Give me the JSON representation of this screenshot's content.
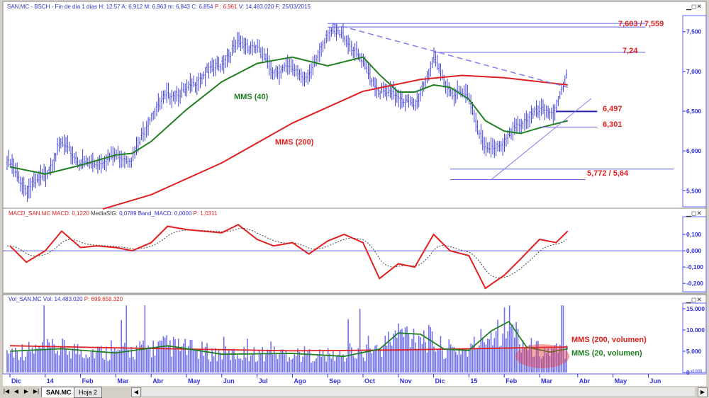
{
  "header": {
    "symbol": "SAN.MC - BSCH - Fin de día 1 días",
    "h": "H: 12:57",
    "a": "A: 6,912",
    "m": "M: 6,963",
    "min": "m: 6,843",
    "c": "C: 6,854",
    "p": "P : 6,961",
    "v": "V: 14.483.020",
    "f": "F: 25/03/2015"
  },
  "macd_header": {
    "name": "MACD_SAN.MC",
    "macd": "MACD: 0,1220",
    "sig_label": "MediaSIG:",
    "sig": "0,0789",
    "band": "Band_MACD: 0,0000",
    "p": "P: 1,0311"
  },
  "vol_header": {
    "name": "Vol_SAN.MC",
    "vol": "Vol: 14.483.020",
    "p": "P: 699.658.320"
  },
  "tabs": {
    "sheet1": "SAN.MC",
    "sheet2": "Hoja 2"
  },
  "colors": {
    "bars": "#4040e0",
    "ma_long": "#e02020",
    "ma_short": "#208020",
    "axis": "#3030e0",
    "annot": "#e02020"
  },
  "chart_data": [
    {
      "type": "ohlc",
      "title": "SAN.MC",
      "yticks": [
        "7,500",
        "7,000",
        "6,500",
        "6,000",
        "5,500"
      ],
      "ytick_values": [
        7.5,
        7.0,
        6.5,
        6.0,
        5.5
      ],
      "ylim": [
        5.28,
        7.72
      ],
      "price": [
        [
          "2013-12-01",
          5.85
        ],
        [
          "2013-12-15",
          5.5
        ],
        [
          "2014-01-01",
          5.7
        ],
        [
          "2014-01-15",
          6.1
        ],
        [
          "2014-02-01",
          5.85
        ],
        [
          "2014-02-15",
          5.85
        ],
        [
          "2014-03-01",
          5.95
        ],
        [
          "2014-03-15",
          5.9
        ],
        [
          "2014-04-01",
          6.45
        ],
        [
          "2014-04-15",
          6.7
        ],
        [
          "2014-05-01",
          6.75
        ],
        [
          "2014-05-15",
          6.95
        ],
        [
          "2014-06-01",
          7.1
        ],
        [
          "2014-06-15",
          7.35
        ],
        [
          "2014-07-01",
          7.3
        ],
        [
          "2014-07-15",
          7.0
        ],
        [
          "2014-08-01",
          7.05
        ],
        [
          "2014-08-15",
          6.9
        ],
        [
          "2014-09-01",
          7.5
        ],
        [
          "2014-09-15",
          7.45
        ],
        [
          "2014-10-01",
          7.1
        ],
        [
          "2014-10-15",
          6.75
        ],
        [
          "2014-11-01",
          6.7
        ],
        [
          "2014-11-15",
          6.55
        ],
        [
          "2014-12-01",
          7.15
        ],
        [
          "2014-12-15",
          6.75
        ],
        [
          "2015-01-01",
          6.7
        ],
        [
          "2015-01-15",
          6.0
        ],
        [
          "2015-02-01",
          6.1
        ],
        [
          "2015-02-15",
          6.35
        ],
        [
          "2015-03-01",
          6.5
        ],
        [
          "2015-03-15",
          6.5
        ],
        [
          "2015-03-25",
          6.96
        ]
      ],
      "series": [
        {
          "name": "MMS (40)",
          "color": "#208020",
          "points": [
            [
              "2013-12-01",
              5.8
            ],
            [
              "2014-01-01",
              5.71
            ],
            [
              "2014-02-01",
              5.82
            ],
            [
              "2014-03-01",
              5.95
            ],
            [
              "2014-03-15",
              5.97
            ],
            [
              "2014-04-01",
              6.12
            ],
            [
              "2014-05-01",
              6.52
            ],
            [
              "2014-06-01",
              6.87
            ],
            [
              "2014-07-01",
              7.1
            ],
            [
              "2014-08-01",
              7.18
            ],
            [
              "2014-09-01",
              7.07
            ],
            [
              "2014-10-01",
              7.18
            ],
            [
              "2014-10-15",
              6.96
            ],
            [
              "2014-11-01",
              6.74
            ],
            [
              "2014-11-15",
              6.74
            ],
            [
              "2014-12-01",
              6.83
            ],
            [
              "2014-12-15",
              6.8
            ],
            [
              "2015-01-01",
              6.65
            ],
            [
              "2015-01-15",
              6.38
            ],
            [
              "2015-02-01",
              6.25
            ],
            [
              "2015-02-15",
              6.22
            ],
            [
              "2015-03-01",
              6.29
            ],
            [
              "2015-03-25",
              6.38
            ]
          ]
        },
        {
          "name": "MMS (200)",
          "color": "#e02020",
          "points": [
            [
              "2014-02-20",
              5.27
            ],
            [
              "2014-04-01",
              5.45
            ],
            [
              "2014-06-01",
              5.85
            ],
            [
              "2014-08-01",
              6.35
            ],
            [
              "2014-10-01",
              6.75
            ],
            [
              "2014-11-20",
              6.9
            ],
            [
              "2014-12-25",
              6.95
            ],
            [
              "2015-02-01",
              6.92
            ],
            [
              "2015-03-25",
              6.83
            ]
          ]
        }
      ],
      "levels": [
        {
          "value": 7.603,
          "from": "2014-09-01",
          "to": "2015-06-01"
        },
        {
          "value": 7.559,
          "from": "2014-09-01",
          "to": "2015-06-01"
        },
        {
          "value": 7.24,
          "from": "2014-12-01",
          "to": "2015-06-01"
        },
        {
          "value": 6.497,
          "from": "2015-03-15",
          "to": "2015-04-20",
          "strong": true
        },
        {
          "value": 6.301,
          "from": "2015-03-01",
          "to": "2015-04-20"
        },
        {
          "value": 5.772,
          "from": "2014-12-15",
          "to": "2015-06-25"
        },
        {
          "value": 5.64,
          "from": "2014-12-15",
          "to": "2015-04-10"
        }
      ],
      "level_labels": [
        "7,603 / 7,559",
        "7,24",
        "6,497",
        "6,301",
        "5,772 / 5,64"
      ],
      "trendlines": [
        {
          "style": "dashed",
          "from": [
            "2014-09-05",
            7.6
          ],
          "to": [
            "2015-03-25",
            6.8
          ]
        },
        {
          "style": "solid",
          "from": [
            "2015-01-20",
            5.64
          ],
          "to": [
            "2015-04-15",
            6.66
          ]
        }
      ]
    },
    {
      "type": "line",
      "title": "MACD_SAN.MC",
      "yticks": [
        "0,100",
        "0,000",
        "-0,100",
        "-0,200"
      ],
      "ytick_values": [
        0.1,
        0,
        -0.1,
        -0.2
      ],
      "ylim": [
        -0.26,
        0.2
      ],
      "macd": [
        [
          "2013-12-01",
          0.03
        ],
        [
          "2013-12-15",
          -0.07
        ],
        [
          "2014-01-01",
          0.0
        ],
        [
          "2014-01-15",
          0.12
        ],
        [
          "2014-02-01",
          0.02
        ],
        [
          "2014-02-15",
          0.03
        ],
        [
          "2014-03-01",
          0.02
        ],
        [
          "2014-03-15",
          0.0
        ],
        [
          "2014-04-01",
          0.05
        ],
        [
          "2014-04-15",
          0.15
        ],
        [
          "2014-05-01",
          0.13
        ],
        [
          "2014-05-15",
          0.12
        ],
        [
          "2014-06-01",
          0.11
        ],
        [
          "2014-06-15",
          0.16
        ],
        [
          "2014-07-01",
          0.07
        ],
        [
          "2014-07-15",
          0.03
        ],
        [
          "2014-08-01",
          0.05
        ],
        [
          "2014-08-15",
          -0.02
        ],
        [
          "2014-09-01",
          0.06
        ],
        [
          "2014-09-15",
          0.1
        ],
        [
          "2014-10-01",
          0.05
        ],
        [
          "2014-10-15",
          -0.17
        ],
        [
          "2014-11-01",
          -0.08
        ],
        [
          "2014-11-15",
          -0.1
        ],
        [
          "2014-12-01",
          0.1
        ],
        [
          "2014-12-15",
          0.0
        ],
        [
          "2015-01-01",
          -0.03
        ],
        [
          "2015-01-15",
          -0.23
        ],
        [
          "2015-02-01",
          -0.15
        ],
        [
          "2015-02-15",
          -0.05
        ],
        [
          "2015-03-01",
          0.07
        ],
        [
          "2015-03-15",
          0.05
        ],
        [
          "2015-03-25",
          0.12
        ]
      ]
    },
    {
      "type": "bar",
      "title": "Vol_SAN.MC",
      "yticks": [
        "15.000",
        "10.000",
        "5.000",
        "0"
      ],
      "ytick_values": [
        15000,
        10000,
        5000,
        0
      ],
      "ylim": [
        0,
        16000
      ],
      "unit": "x1000",
      "series": [
        {
          "name": "MMS (200, volumen)",
          "color": "#e02020",
          "points": [
            [
              "2013-12-01",
              6300
            ],
            [
              "2014-03-01",
              5800
            ],
            [
              "2014-08-01",
              5100
            ],
            [
              "2014-11-01",
              5300
            ],
            [
              "2015-03-25",
              6000
            ]
          ]
        },
        {
          "name": "MMS (20, volumen)",
          "color": "#208020",
          "points": [
            [
              "2013-12-01",
              5000
            ],
            [
              "2014-01-15",
              5600
            ],
            [
              "2014-03-01",
              4600
            ],
            [
              "2014-04-15",
              6300
            ],
            [
              "2014-06-01",
              4300
            ],
            [
              "2014-08-01",
              4500
            ],
            [
              "2014-09-15",
              3800
            ],
            [
              "2014-10-15",
              5500
            ],
            [
              "2014-11-01",
              9300
            ],
            [
              "2014-11-20",
              9000
            ],
            [
              "2014-12-10",
              5500
            ],
            [
              "2015-01-01",
              5200
            ],
            [
              "2015-01-20",
              9800
            ],
            [
              "2015-02-05",
              12000
            ],
            [
              "2015-02-20",
              6000
            ],
            [
              "2015-03-10",
              4800
            ],
            [
              "2015-03-25",
              5600
            ]
          ]
        }
      ]
    },
    {
      "type": "axis",
      "xticks": [
        "Dic",
        "14",
        "Feb",
        "Mar",
        "Abr",
        "May",
        "Jun",
        "Jul",
        "Ago",
        "Sep",
        "Oct",
        "Nov",
        "Dic",
        "15",
        "Feb",
        "Mar",
        "Abr",
        "May",
        "Jun"
      ]
    }
  ]
}
